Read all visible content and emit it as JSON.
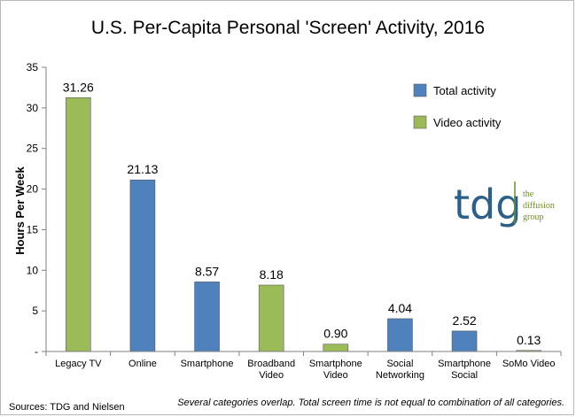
{
  "chart_data": {
    "type": "bar",
    "title": "U.S. Per-Capita Personal 'Screen' Activity, 2016",
    "ylabel": "Hours Per Week",
    "xlabel": "",
    "ylim": [
      0,
      35
    ],
    "yticks": [
      "-",
      "5",
      "10",
      "15",
      "20",
      "25",
      "30",
      "35"
    ],
    "ytick_values": [
      0,
      5,
      10,
      15,
      20,
      25,
      30,
      35
    ],
    "categories": [
      [
        "Legacy TV"
      ],
      [
        "Online"
      ],
      [
        "Smartphone"
      ],
      [
        "Broadband",
        "Video"
      ],
      [
        "Smartphone",
        "Video"
      ],
      [
        "Social",
        "Networking"
      ],
      [
        "Smartphone",
        "Social"
      ],
      [
        "SoMo Video"
      ]
    ],
    "values": [
      31.26,
      21.13,
      8.57,
      8.18,
      0.9,
      4.04,
      2.52,
      0.13
    ],
    "value_labels": [
      "31.26",
      "21.13",
      "8.57",
      "8.18",
      "0.90",
      "4.04",
      "2.52",
      "0.13"
    ],
    "bar_types": [
      "video",
      "total",
      "total",
      "video",
      "video",
      "total",
      "total",
      "video"
    ],
    "legend": [
      {
        "key": "total",
        "label": "Total activity",
        "color": "#4f81bd"
      },
      {
        "key": "video",
        "label": "Video activity",
        "color": "#9bbb59"
      }
    ],
    "legend_position": "top-right",
    "grid": false
  },
  "logo": {
    "mark": "tdg",
    "lines": [
      "the",
      "diffusion",
      "group"
    ],
    "color_main": "#2b5f8c",
    "color_sub": "#6f8f2c"
  },
  "footer": {
    "source": "Sources: TDG and Nielsen",
    "note": "Several categories overlap. Total screen time is not equal to combination of all categories."
  }
}
